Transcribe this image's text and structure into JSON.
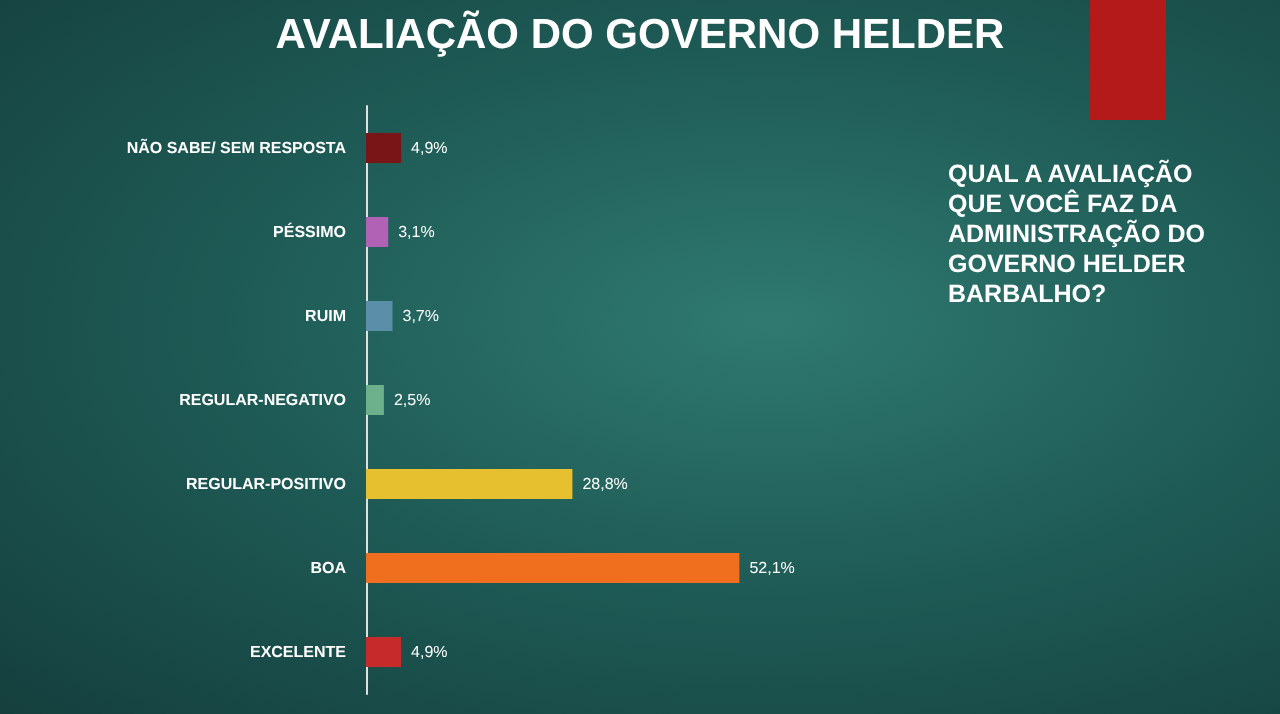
{
  "chart_data": {
    "type": "bar",
    "orientation": "horizontal",
    "title": "AVALIAÇÃO DO GOVERNO HELDER",
    "annotations": [
      "QUAL A AVALIAÇÃO QUE VOCÊ FAZ DA ADMINISTRAÇÃO DO GOVERNO HELDER BARBALHO?"
    ],
    "categories": [
      "NÃO SABE/ SEM RESPOSTA",
      "PÉSSIMO",
      "RUIM",
      "REGULAR-NEGATIVO",
      "REGULAR-POSITIVO",
      "BOA",
      "EXCELENTE"
    ],
    "values": [
      4.9,
      3.1,
      3.7,
      2.5,
      28.8,
      52.1,
      4.9
    ],
    "colors": [
      "#7a1517",
      "#b262b4",
      "#5b8ea8",
      "#6cb08c",
      "#e6c02e",
      "#f06f1e",
      "#c62a2a"
    ],
    "value_labels": [
      "4,9%",
      "3,1%",
      "3,7%",
      "2,5%",
      "28,8%",
      "52,1%",
      "4,9%"
    ]
  }
}
